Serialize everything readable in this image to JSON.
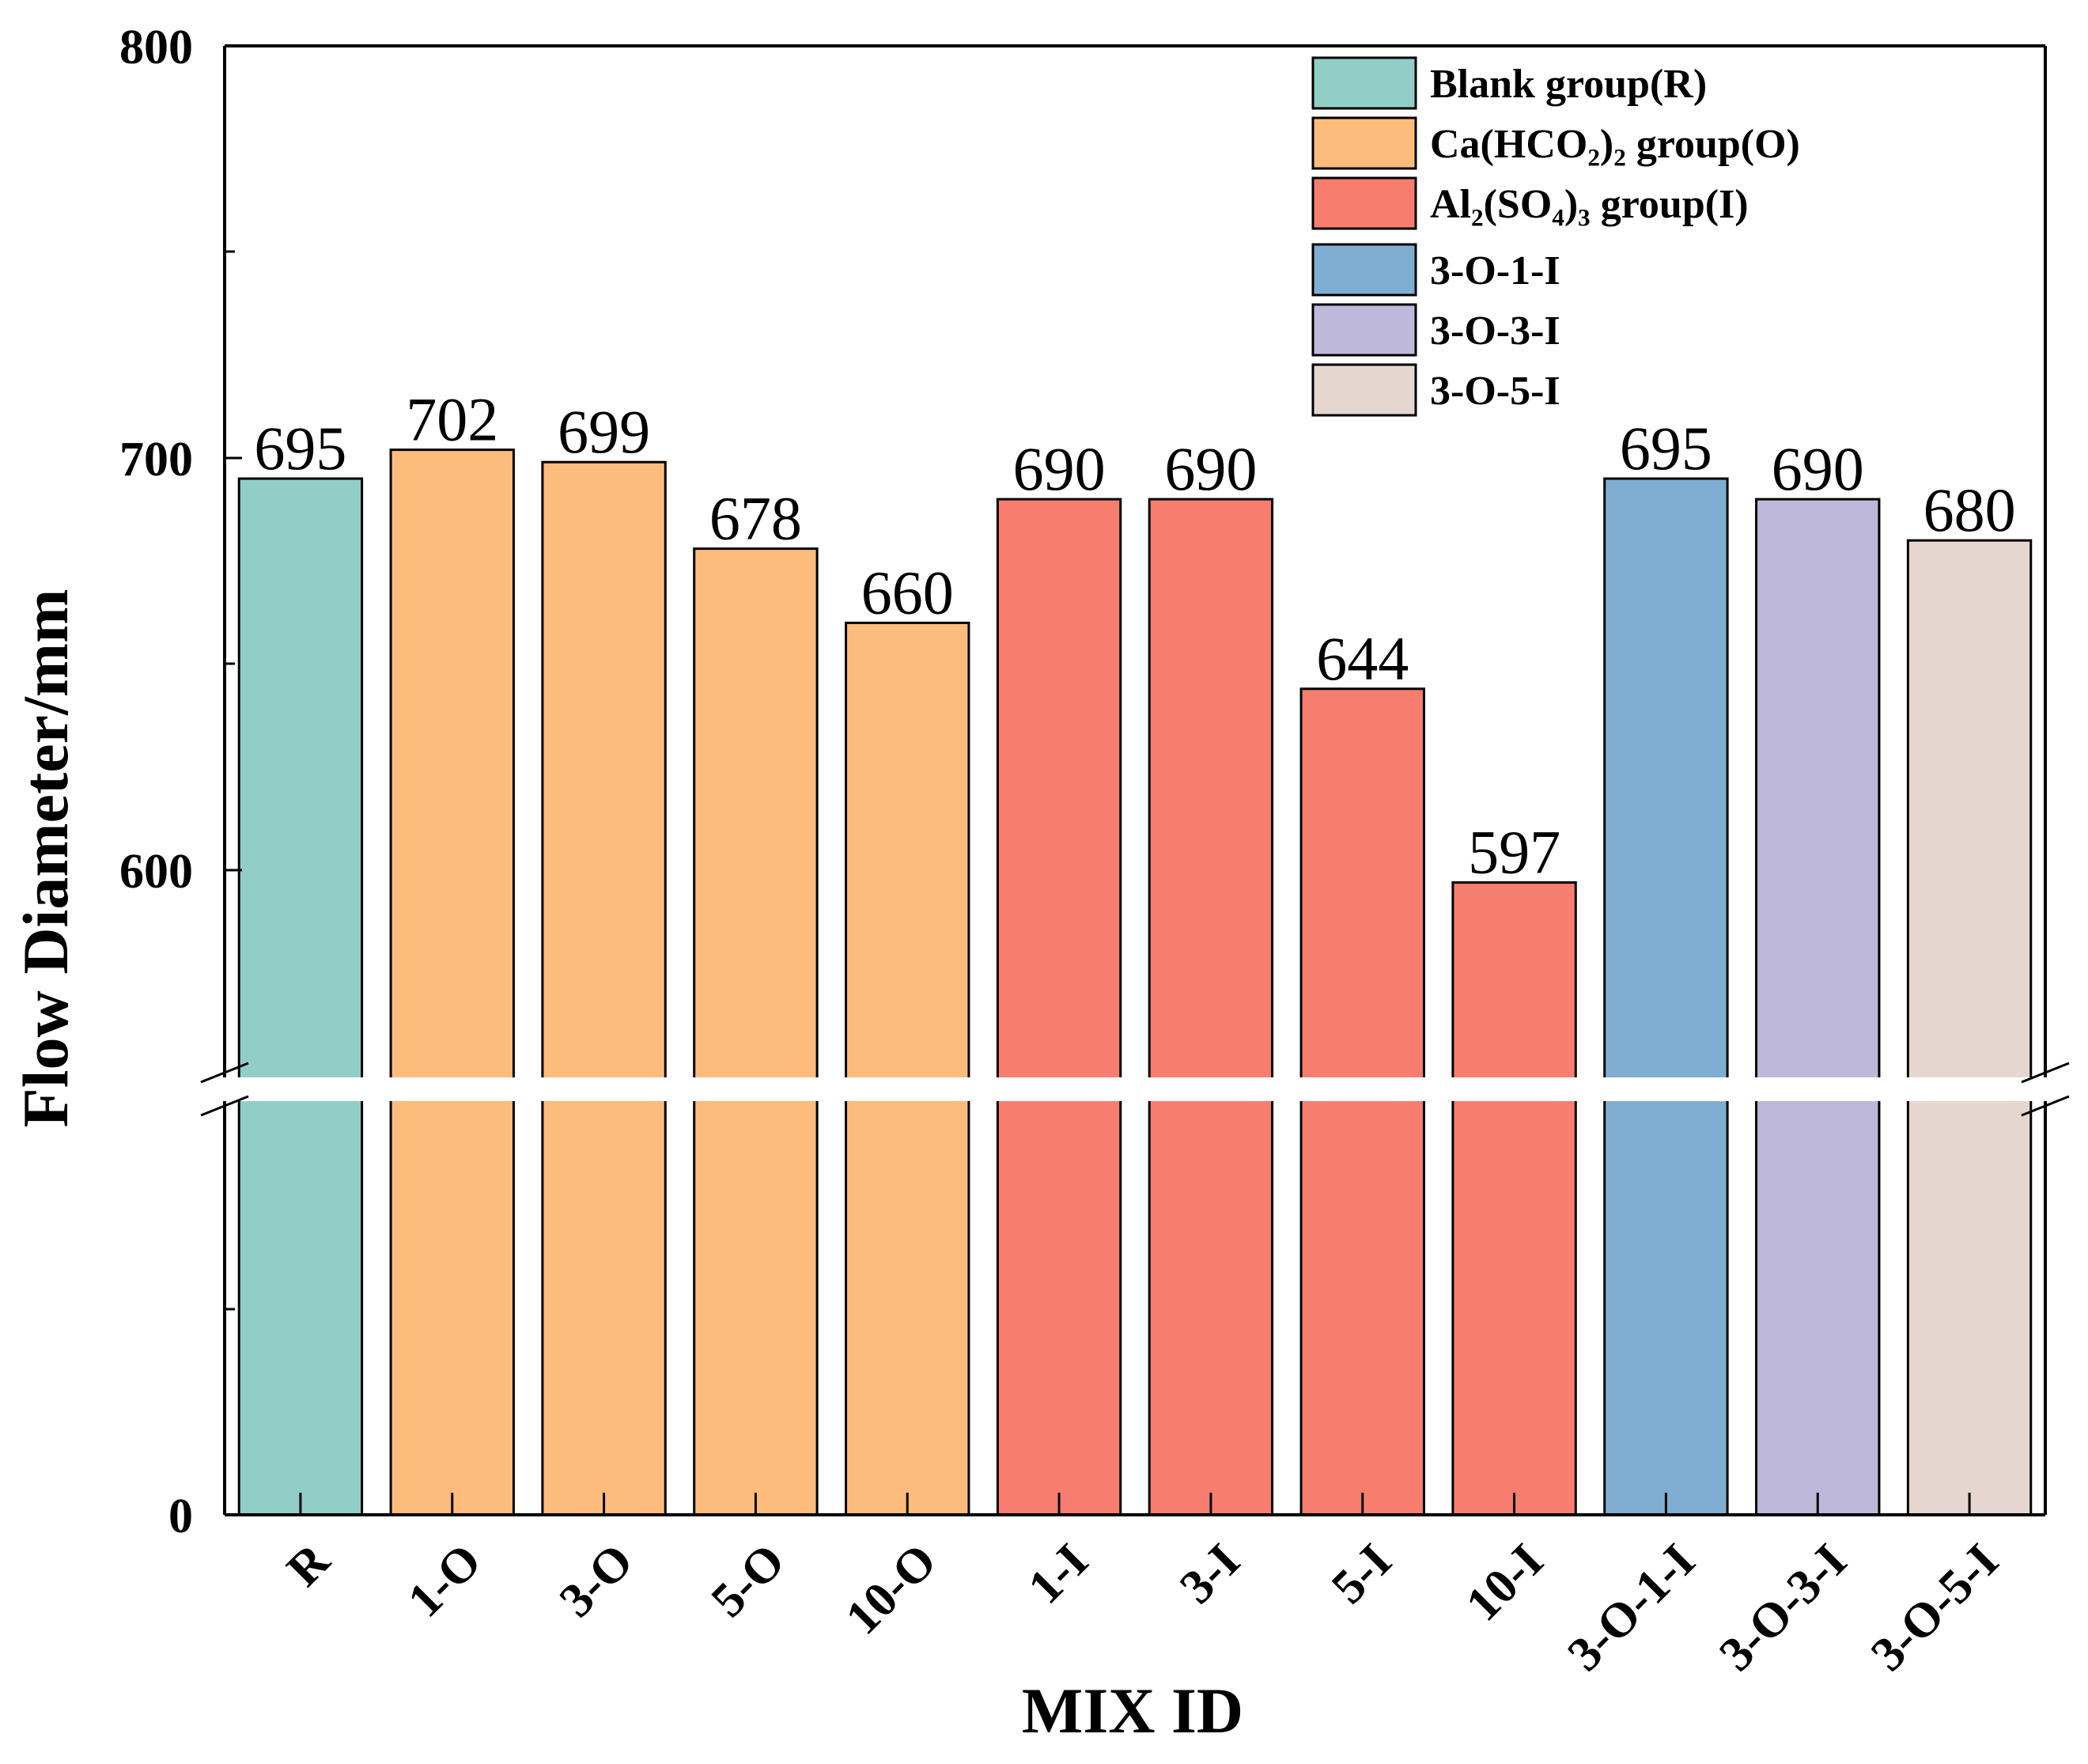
{
  "chart_data": {
    "type": "bar",
    "xlabel": "MIX ID",
    "ylabel": "Flow Diameter/mm",
    "y_axis_break": true,
    "y_ticks_upper": [
      "600",
      "700",
      "800"
    ],
    "y_ticks_lower": [
      "0"
    ],
    "y_upper_range": [
      550,
      800
    ],
    "categories": [
      "R",
      "1-O",
      "3-O",
      "5-O",
      "10-O",
      "1-I",
      "3-I",
      "5-I",
      "10-I",
      "3-O-1-I",
      "3-O-3-I",
      "3-O-5-I"
    ],
    "values": [
      695,
      702,
      699,
      678,
      660,
      690,
      690,
      644,
      597,
      695,
      690,
      680
    ],
    "value_labels": [
      "695",
      "702",
      "699",
      "678",
      "660",
      "690",
      "690",
      "644",
      "597",
      "695",
      "690",
      "680"
    ],
    "bar_groups": [
      0,
      1,
      1,
      1,
      1,
      2,
      2,
      2,
      2,
      3,
      4,
      5
    ],
    "legend": [
      {
        "label": "Blank group(R)",
        "color": "#92CEC8"
      },
      {
        "label": "Ca(HCO₂)₂ group(O)",
        "color": "#FDBC7B"
      },
      {
        "label": "Al₂(SO₄)₃ group(I)",
        "color": "#F77E6E"
      },
      {
        "label": "3-O-1-I",
        "color": "#80AED2"
      },
      {
        "label": "3-O-3-I",
        "color": "#BEB8DA"
      },
      {
        "label": "3-O-5-I",
        "color": "#E5D7D0"
      }
    ],
    "legend_position": "top-right",
    "grid": false
  }
}
